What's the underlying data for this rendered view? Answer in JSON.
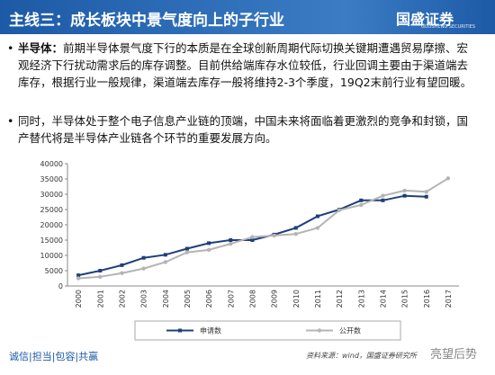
{
  "header": {
    "title": "主线三：成长板块中景气度向上的子行业",
    "logo": "国盛证券",
    "logo_sub": "GUOSHENG SECURITIES"
  },
  "bullets": [
    {
      "label": "半导体：",
      "text": "前期半导体景气度下行的本质是在全球创新周期代际切换关键期遭遇贸易摩擦、宏观经济下行扰动需求后的库存调整。目前供给端库存水位较低，行业回调主要由于渠道端去库存，根据行业一般规律，渠道端去库存一般将维持2-3个季度，19Q2末前行业有望回暖。"
    },
    {
      "text": "同时，半导体处于整个电子信息产业链的顶端，中国未来将面临着更激烈的竞争和封锁，国产替代将是半导体产业链各个环节的重要发展方向。"
    }
  ],
  "chart_data": {
    "type": "line",
    "categories": [
      "2000",
      "2001",
      "2002",
      "2003",
      "2004",
      "2005",
      "2006",
      "2007",
      "2008",
      "2009",
      "2010",
      "2011",
      "2012",
      "2013",
      "2014",
      "2015",
      "2016",
      "2017"
    ],
    "series": [
      {
        "name": "申请数",
        "color": "#1f3f7a",
        "marker": "square",
        "values": [
          3500,
          5000,
          6800,
          9200,
          10200,
          12200,
          14000,
          15000,
          15000,
          16800,
          19000,
          22800,
          25000,
          28000,
          28000,
          29500,
          29200,
          null
        ]
      },
      {
        "name": "公开数",
        "color": "#b4b4b4",
        "marker": "circle",
        "values": [
          2500,
          3000,
          4200,
          5700,
          7800,
          11000,
          11800,
          13800,
          16000,
          16500,
          17000,
          19000,
          24800,
          26500,
          29500,
          31200,
          30800,
          35200
        ]
      }
    ],
    "ylim": [
      0,
      40000
    ],
    "yticks": [
      0,
      5000,
      10000,
      15000,
      20000,
      25000,
      30000,
      35000,
      40000
    ],
    "legend": "bottom"
  },
  "footer": {
    "motto": "诚信|担当|包容|共赢",
    "source": "资料来源：wind，国盛证券研究所",
    "watermark": "亮望后势"
  }
}
